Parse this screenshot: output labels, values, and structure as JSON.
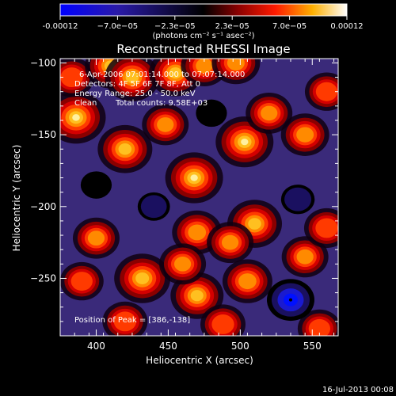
{
  "chart_data": {
    "type": "heatmap",
    "title": "Reconstructed RHESSI Image",
    "xlabel": "Heliocentric X (arcsec)",
    "ylabel": "Heliocentric Y (arcsec)",
    "xlim": [
      375,
      568
    ],
    "ylim": [
      -290,
      -97
    ],
    "xticks": [
      400,
      450,
      500,
      550
    ],
    "yticks": [
      -100,
      -150,
      -200,
      -250
    ],
    "colorbar": {
      "label": "(photons cm⁻² s⁻¹ asec⁻²)",
      "range": [
        -0.00012,
        0.00012
      ],
      "ticks": [
        "-0.00012",
        "−7.0e−05",
        "−2.3e−05",
        "2.3e−05",
        "7.0e−05",
        "0.00012"
      ]
    },
    "annotations": {
      "time": "6-Apr-2006 07:01:14.000 to 07:07:14.000",
      "detectors": "Detectors: 4F 5F 6F 7F 8F, Att 0",
      "energy": "Energy Range: 25.0 - 50.0 keV",
      "clean_label": "Clean",
      "counts": "Total counts: 9.58E+03",
      "peak": "Position of Peak = [386,-138]"
    },
    "peak": {
      "x": 386,
      "y": -138
    },
    "sources": [
      {
        "x": 386,
        "y": -138,
        "value": 1.0
      },
      {
        "x": 383,
        "y": -110,
        "value": 0.55
      },
      {
        "x": 410,
        "y": -102,
        "value": 0.75
      },
      {
        "x": 425,
        "y": -110,
        "value": 0.85
      },
      {
        "x": 455,
        "y": -107,
        "value": 0.8
      },
      {
        "x": 475,
        "y": -102,
        "value": 0.6
      },
      {
        "x": 497,
        "y": -100,
        "value": 0.65
      },
      {
        "x": 420,
        "y": -160,
        "value": 0.85
      },
      {
        "x": 448,
        "y": -143,
        "value": 0.6
      },
      {
        "x": 468,
        "y": -180,
        "value": 0.95
      },
      {
        "x": 503,
        "y": -155,
        "value": 0.95
      },
      {
        "x": 520,
        "y": -135,
        "value": 0.6
      },
      {
        "x": 545,
        "y": -150,
        "value": 0.65
      },
      {
        "x": 560,
        "y": -120,
        "value": 0.5
      },
      {
        "x": 470,
        "y": -218,
        "value": 0.7
      },
      {
        "x": 510,
        "y": -212,
        "value": 0.85
      },
      {
        "x": 493,
        "y": -225,
        "value": 0.6
      },
      {
        "x": 400,
        "y": -222,
        "value": 0.6
      },
      {
        "x": 390,
        "y": -252,
        "value": 0.5
      },
      {
        "x": 432,
        "y": -250,
        "value": 0.9
      },
      {
        "x": 470,
        "y": -262,
        "value": 0.8
      },
      {
        "x": 460,
        "y": -240,
        "value": 0.6
      },
      {
        "x": 505,
        "y": -252,
        "value": 0.7
      },
      {
        "x": 545,
        "y": -235,
        "value": 0.6
      },
      {
        "x": 560,
        "y": -215,
        "value": 0.55
      },
      {
        "x": 420,
        "y": -280,
        "value": 0.55
      },
      {
        "x": 488,
        "y": -282,
        "value": 0.55
      },
      {
        "x": 555,
        "y": -285,
        "value": 0.5
      },
      {
        "x": 535,
        "y": -265,
        "value": -1.0
      },
      {
        "x": 440,
        "y": -200,
        "value": -0.4
      },
      {
        "x": 540,
        "y": -195,
        "value": -0.45
      },
      {
        "x": 480,
        "y": -135,
        "value": -0.35
      },
      {
        "x": 400,
        "y": -185,
        "value": -0.35
      }
    ]
  },
  "footer": {
    "date": "16-Jul-2013 00:08"
  }
}
